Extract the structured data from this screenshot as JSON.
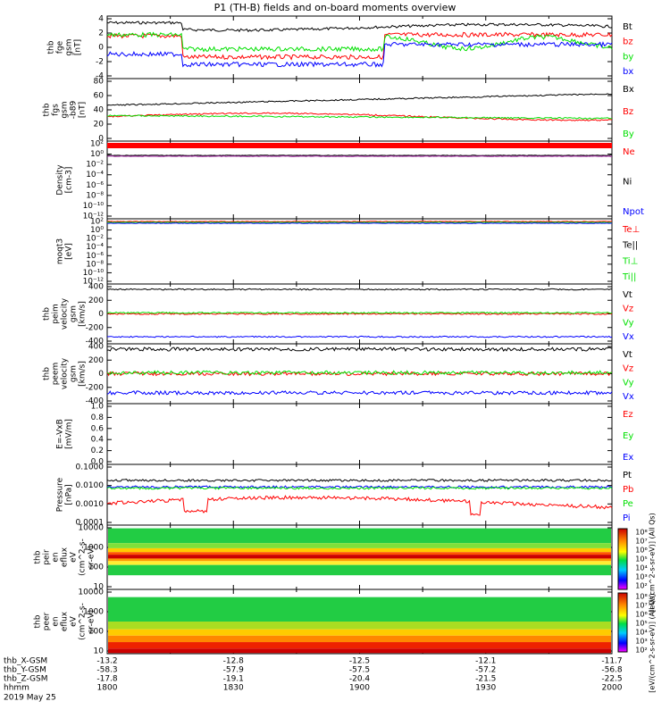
{
  "title": "P1 (TH-B) fields and on-board moments overview",
  "colors": {
    "black": "#000000",
    "red": "#ff0000",
    "green": "#00e000",
    "blue": "#0000ff",
    "magenta": "#a020a0"
  },
  "chart_data": [
    {
      "type": "line",
      "ylabel": [
        "thb",
        "fge",
        "gsm",
        "[nT]"
      ],
      "ylim": [
        -4,
        4
      ],
      "yticks": [
        "4",
        "2",
        "0",
        "-2",
        "-4"
      ],
      "series": [
        {
          "name": "Bt",
          "color": "black"
        },
        {
          "name": "bz",
          "color": "red"
        },
        {
          "name": "by",
          "color": "green"
        },
        {
          "name": "bx",
          "color": "blue"
        }
      ]
    },
    {
      "type": "line",
      "ylabel": [
        "thb",
        "fgs",
        "gsm",
        "-b89",
        "[nT]"
      ],
      "ylim": [
        0,
        80
      ],
      "yticks": [
        "80",
        "60",
        "40",
        "20",
        "0"
      ],
      "series": [
        {
          "name": "Bx",
          "color": "black"
        },
        {
          "name": "Bz",
          "color": "red"
        },
        {
          "name": "By",
          "color": "green"
        }
      ]
    },
    {
      "type": "line",
      "ylabel": [
        "Density",
        "[cm-3]"
      ],
      "scale": "log",
      "yticks": [
        "10²",
        "10⁰",
        "10⁻²",
        "10⁻⁴",
        "10⁻⁶",
        "10⁻⁸",
        "10⁻¹⁰",
        "10⁻¹²"
      ],
      "series": [
        {
          "name": "Ne",
          "color": "red"
        },
        {
          "name": "Ni",
          "color": "black"
        },
        {
          "name": "Npot",
          "color": "blue"
        }
      ]
    },
    {
      "type": "line",
      "ylabel": [
        "moqt3",
        "[eV]"
      ],
      "scale": "log",
      "yticks": [
        "10²",
        "10⁰",
        "10⁻²",
        "10⁻⁴",
        "10⁻⁶",
        "10⁻⁸",
        "10⁻¹⁰",
        "10⁻¹²"
      ],
      "series": [
        {
          "name": "Te⊥",
          "color": "red"
        },
        {
          "name": "Te||",
          "color": "black"
        },
        {
          "name": "Ti⊥",
          "color": "green"
        },
        {
          "name": "Ti||",
          "color": "green"
        }
      ]
    },
    {
      "type": "line",
      "ylabel": [
        "thb",
        "peim",
        "velocity",
        "gsm",
        "[km/s]"
      ],
      "ylim": [
        -400,
        400
      ],
      "yticks": [
        "400",
        "200",
        "0",
        "-200",
        "-400"
      ],
      "series": [
        {
          "name": "Vt",
          "color": "black"
        },
        {
          "name": "Vz",
          "color": "red"
        },
        {
          "name": "Vy",
          "color": "green"
        },
        {
          "name": "Vx",
          "color": "blue"
        }
      ]
    },
    {
      "type": "line",
      "ylabel": [
        "thb",
        "peem",
        "velocity",
        "gsm",
        "[km/s]"
      ],
      "ylim": [
        -400,
        400
      ],
      "yticks": [
        "400",
        "200",
        "0",
        "-200",
        "-400"
      ],
      "series": [
        {
          "name": "Vt",
          "color": "black"
        },
        {
          "name": "Vz",
          "color": "red"
        },
        {
          "name": "Vy",
          "color": "green"
        },
        {
          "name": "Vx",
          "color": "blue"
        }
      ]
    },
    {
      "type": "line",
      "ylabel": [
        "E=-VxB",
        "[mV/m]"
      ],
      "ylim": [
        0,
        1
      ],
      "yticks": [
        "1.0",
        "0.8",
        "0.6",
        "0.4",
        "0.2",
        "0.0"
      ],
      "series": [
        {
          "name": "Ez",
          "color": "red"
        },
        {
          "name": "Ey",
          "color": "green"
        },
        {
          "name": "Ex",
          "color": "blue"
        }
      ]
    },
    {
      "type": "line",
      "ylabel": [
        "Pressure",
        "[nPa]"
      ],
      "scale": "log",
      "yticks": [
        "0.1000",
        "0.0100",
        "0.0010",
        "0.0001"
      ],
      "series": [
        {
          "name": "Pt",
          "color": "black"
        },
        {
          "name": "Pb",
          "color": "red"
        },
        {
          "name": "Pe",
          "color": "green"
        },
        {
          "name": "Pi",
          "color": "blue"
        }
      ]
    },
    {
      "type": "heatmap",
      "ylabel": [
        "thb",
        "peir",
        "en",
        "eflux",
        "eV",
        "(cm^2-s-",
        "sr-eV)"
      ],
      "yticks": [
        "10000",
        "1000",
        "100",
        "10"
      ]
    },
    {
      "type": "heatmap",
      "ylabel": [
        "thb",
        "peer",
        "en",
        "eflux",
        "eV",
        "(cm^2-s-",
        "sr-eV)"
      ],
      "yticks": [
        "10000",
        "1000",
        "100",
        "10"
      ]
    }
  ],
  "colorbar": {
    "ticks": [
      "10⁸",
      "10⁷",
      "10⁶",
      "10⁵",
      "10⁴",
      "10³",
      "10²"
    ],
    "label": "[eV/(cm^2-s-sr-eV)] (All Qs)",
    "label2": "[eV/(cm^2-s-sr-eV)] (All Qs)"
  },
  "xaxis": {
    "rows": [
      {
        "label": "thb_X-GSM",
        "values": [
          "-13.2",
          "-12.8",
          "-12.5",
          "-12.1",
          "-11.7"
        ]
      },
      {
        "label": "thb_Y-GSM",
        "values": [
          "-58.3",
          "-57.9",
          "-57.5",
          "-57.2",
          "-56.8"
        ]
      },
      {
        "label": "thb_Z-GSM",
        "values": [
          "-17.8",
          "-19.1",
          "-20.4",
          "-21.5",
          "-22.5"
        ]
      },
      {
        "label": "hhmm",
        "values": [
          "1800",
          "1830",
          "1900",
          "1930",
          "2000"
        ]
      }
    ],
    "date": "2019 May 25"
  }
}
